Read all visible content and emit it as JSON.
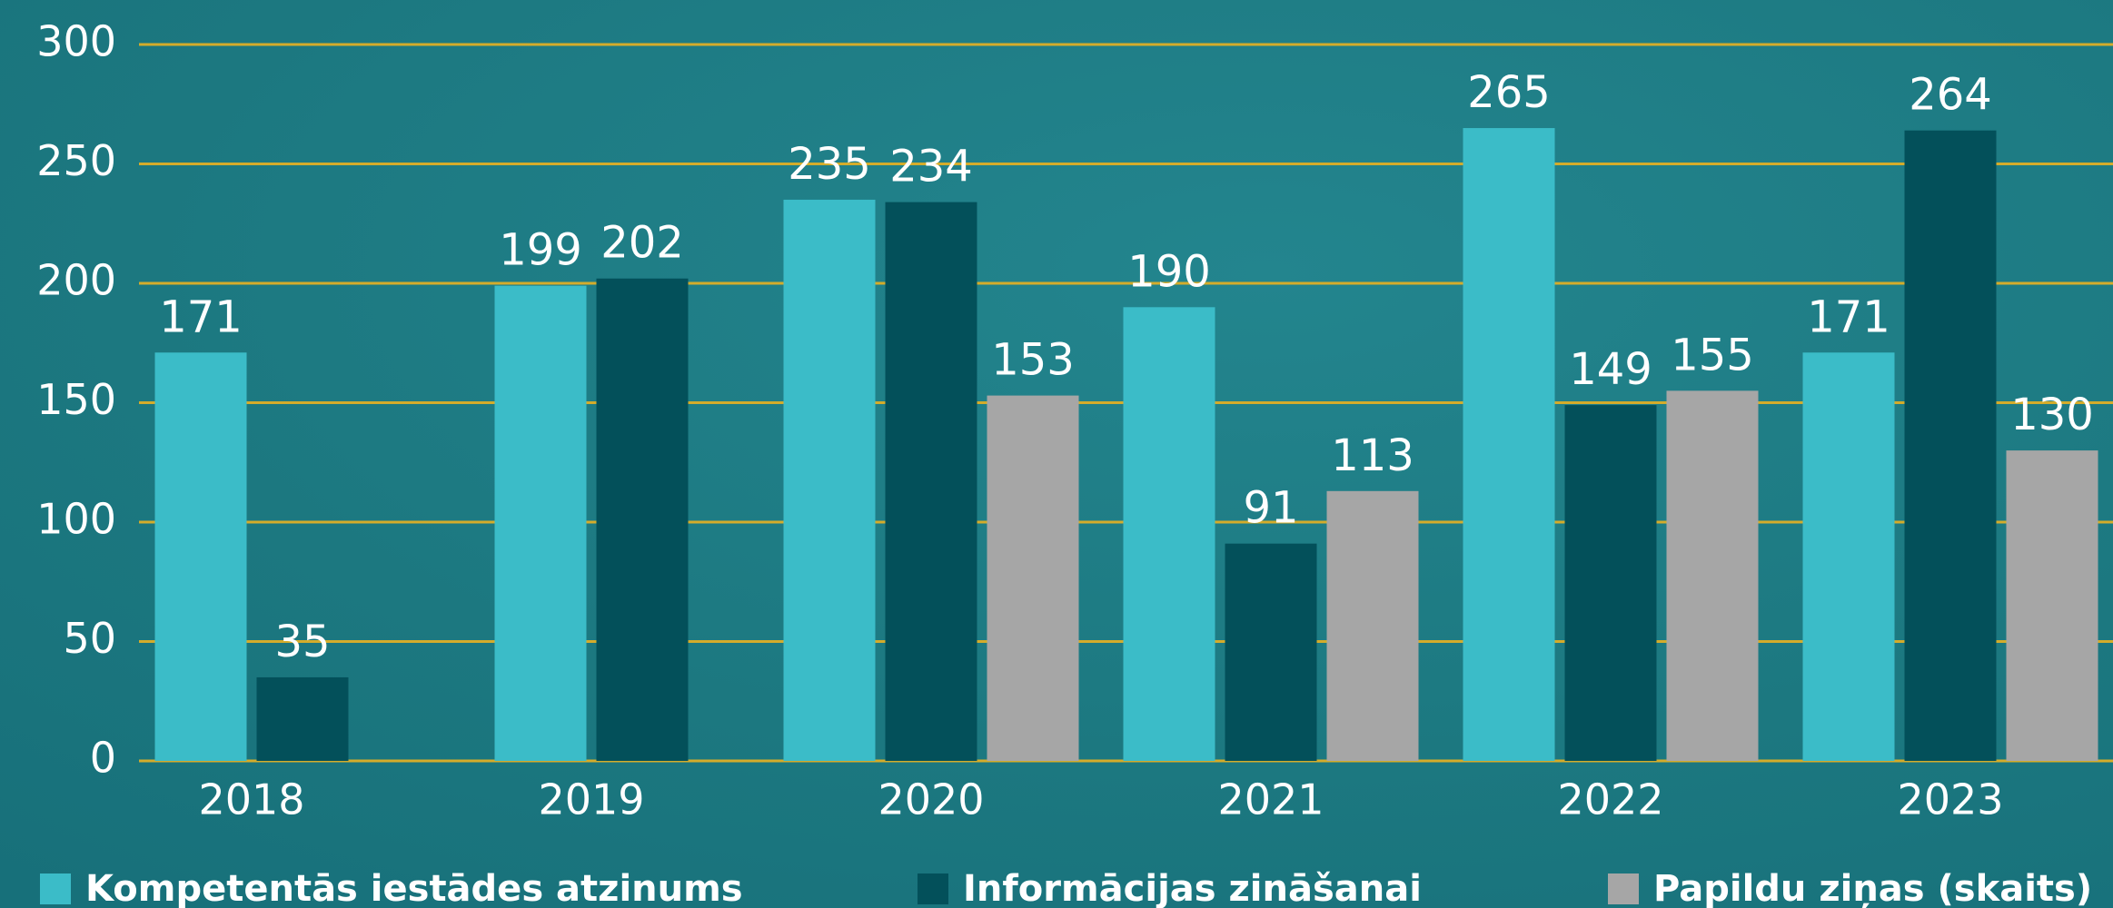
{
  "chart_data": {
    "type": "bar",
    "categories": [
      "2018",
      "2019",
      "2020",
      "2021",
      "2022",
      "2023"
    ],
    "series": [
      {
        "name": "Kompetentās iestādes atzinums",
        "color": "#3bbcc8",
        "values": [
          171,
          199,
          235,
          190,
          265,
          171
        ]
      },
      {
        "name": "Informācijas zināšanai",
        "color": "#03505a",
        "values": [
          35,
          202,
          234,
          91,
          149,
          264
        ]
      },
      {
        "name": "Papildu ziņas (skaits)",
        "color": "#a6a6a6",
        "values": [
          null,
          null,
          153,
          113,
          155,
          130
        ]
      }
    ],
    "ylim": [
      0,
      300
    ],
    "yticks": [
      0,
      50,
      100,
      150,
      200,
      250,
      300
    ],
    "grid": true,
    "grid_color": "#d4ac2b",
    "legend": "bottom"
  }
}
